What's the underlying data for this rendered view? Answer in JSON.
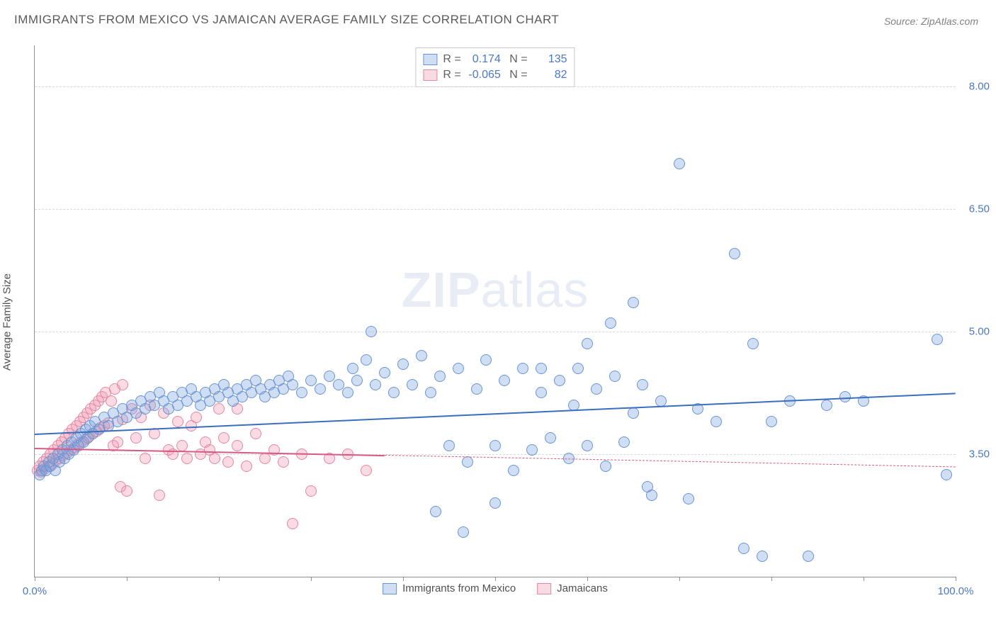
{
  "title": "IMMIGRANTS FROM MEXICO VS JAMAICAN AVERAGE FAMILY SIZE CORRELATION CHART",
  "source_label": "Source: ZipAtlas.com",
  "watermark_a": "ZIP",
  "watermark_b": "atlas",
  "ylabel": "Average Family Size",
  "chart": {
    "type": "scatter",
    "xlim": [
      0,
      100
    ],
    "ylim": [
      2.0,
      8.5
    ],
    "y_gridlines": [
      3.5,
      5.0,
      6.5,
      8.0
    ],
    "y_tick_labels": [
      "3.50",
      "5.00",
      "6.50",
      "8.00"
    ],
    "x_ticks": [
      0,
      10,
      20,
      30,
      40,
      50,
      60,
      70,
      80,
      90,
      100
    ],
    "x_tick_labels": {
      "0": "0.0%",
      "100": "100.0%"
    },
    "background_color": "#ffffff",
    "grid_color": "#d8d8d8",
    "axis_color": "#909090",
    "marker_radius": 8,
    "marker_border_width": 1.2
  },
  "series": {
    "mexico": {
      "label": "Immigrants from Mexico",
      "R": "0.174",
      "N": "135",
      "fill": "rgba(120,160,220,0.35)",
      "stroke": "#6a94d4",
      "trend_color": "#3a6fc0",
      "trend": {
        "y_at_x0": 3.75,
        "y_at_x100": 4.25
      },
      "points": [
        [
          0.5,
          3.25
        ],
        [
          0.8,
          3.3
        ],
        [
          1.0,
          3.35
        ],
        [
          1.2,
          3.3
        ],
        [
          1.5,
          3.4
        ],
        [
          1.7,
          3.35
        ],
        [
          2.0,
          3.45
        ],
        [
          2.2,
          3.3
        ],
        [
          2.5,
          3.5
        ],
        [
          2.7,
          3.4
        ],
        [
          3.0,
          3.55
        ],
        [
          3.2,
          3.45
        ],
        [
          3.5,
          3.6
        ],
        [
          3.7,
          3.5
        ],
        [
          4.0,
          3.65
        ],
        [
          4.2,
          3.55
        ],
        [
          4.5,
          3.7
        ],
        [
          4.8,
          3.6
        ],
        [
          5.0,
          3.75
        ],
        [
          5.3,
          3.65
        ],
        [
          5.5,
          3.8
        ],
        [
          5.8,
          3.7
        ],
        [
          6.0,
          3.85
        ],
        [
          6.3,
          3.75
        ],
        [
          6.5,
          3.9
        ],
        [
          7.0,
          3.8
        ],
        [
          7.5,
          3.95
        ],
        [
          8.0,
          3.85
        ],
        [
          8.5,
          4.0
        ],
        [
          9.0,
          3.9
        ],
        [
          9.5,
          4.05
        ],
        [
          10.0,
          3.95
        ],
        [
          10.5,
          4.1
        ],
        [
          11.0,
          4.0
        ],
        [
          11.5,
          4.15
        ],
        [
          12.0,
          4.05
        ],
        [
          12.5,
          4.2
        ],
        [
          13.0,
          4.1
        ],
        [
          13.5,
          4.25
        ],
        [
          14.0,
          4.15
        ],
        [
          14.5,
          4.05
        ],
        [
          15.0,
          4.2
        ],
        [
          15.5,
          4.1
        ],
        [
          16.0,
          4.25
        ],
        [
          16.5,
          4.15
        ],
        [
          17.0,
          4.3
        ],
        [
          17.5,
          4.2
        ],
        [
          18.0,
          4.1
        ],
        [
          18.5,
          4.25
        ],
        [
          19.0,
          4.15
        ],
        [
          19.5,
          4.3
        ],
        [
          20.0,
          4.2
        ],
        [
          20.5,
          4.35
        ],
        [
          21.0,
          4.25
        ],
        [
          21.5,
          4.15
        ],
        [
          22.0,
          4.3
        ],
        [
          22.5,
          4.2
        ],
        [
          23.0,
          4.35
        ],
        [
          23.5,
          4.25
        ],
        [
          24.0,
          4.4
        ],
        [
          24.5,
          4.3
        ],
        [
          25.0,
          4.2
        ],
        [
          25.5,
          4.35
        ],
        [
          26.0,
          4.25
        ],
        [
          26.5,
          4.4
        ],
        [
          27.0,
          4.3
        ],
        [
          27.5,
          4.45
        ],
        [
          28.0,
          4.35
        ],
        [
          29.0,
          4.25
        ],
        [
          30.0,
          4.4
        ],
        [
          31.0,
          4.3
        ],
        [
          32.0,
          4.45
        ],
        [
          33.0,
          4.35
        ],
        [
          34.0,
          4.25
        ],
        [
          34.5,
          4.55
        ],
        [
          35.0,
          4.4
        ],
        [
          36.0,
          4.65
        ],
        [
          36.5,
          5.0
        ],
        [
          37.0,
          4.35
        ],
        [
          38.0,
          4.5
        ],
        [
          39.0,
          4.25
        ],
        [
          40.0,
          4.6
        ],
        [
          41.0,
          4.35
        ],
        [
          42.0,
          4.7
        ],
        [
          43.0,
          4.25
        ],
        [
          43.5,
          2.8
        ],
        [
          44.0,
          4.45
        ],
        [
          45.0,
          3.6
        ],
        [
          46.0,
          4.55
        ],
        [
          46.5,
          2.55
        ],
        [
          47.0,
          3.4
        ],
        [
          48.0,
          4.3
        ],
        [
          49.0,
          4.65
        ],
        [
          50.0,
          3.6
        ],
        [
          51.0,
          4.4
        ],
        [
          52.0,
          3.3
        ],
        [
          53.0,
          4.55
        ],
        [
          54.0,
          3.55
        ],
        [
          55.0,
          4.25
        ],
        [
          56.0,
          3.7
        ],
        [
          57.0,
          4.4
        ],
        [
          58.0,
          3.45
        ],
        [
          58.5,
          4.1
        ],
        [
          59.0,
          4.55
        ],
        [
          60.0,
          3.6
        ],
        [
          61.0,
          4.3
        ],
        [
          62.0,
          3.35
        ],
        [
          62.5,
          5.1
        ],
        [
          63.0,
          4.45
        ],
        [
          64.0,
          3.65
        ],
        [
          65.0,
          4.0
        ],
        [
          66.0,
          4.35
        ],
        [
          66.5,
          3.1
        ],
        [
          67.0,
          3.0
        ],
        [
          68.0,
          4.15
        ],
        [
          70.0,
          7.05
        ],
        [
          71.0,
          2.95
        ],
        [
          72.0,
          4.05
        ],
        [
          74.0,
          3.9
        ],
        [
          76.0,
          5.95
        ],
        [
          77.0,
          2.35
        ],
        [
          78.0,
          4.85
        ],
        [
          79.0,
          2.25
        ],
        [
          80.0,
          3.9
        ],
        [
          82.0,
          4.15
        ],
        [
          84.0,
          2.25
        ],
        [
          86.0,
          4.1
        ],
        [
          88.0,
          4.2
        ],
        [
          90.0,
          4.15
        ],
        [
          98.0,
          4.9
        ],
        [
          99.0,
          3.25
        ],
        [
          65.0,
          5.35
        ],
        [
          60.0,
          4.85
        ],
        [
          55.0,
          4.55
        ],
        [
          50.0,
          2.9
        ]
      ]
    },
    "jamaica": {
      "label": "Jamaicans",
      "R": "-0.065",
      "N": "82",
      "fill": "rgba(240,150,175,0.35)",
      "stroke": "#e288a2",
      "trend_color": "#d85a84",
      "trend": {
        "y_at_x0": 3.58,
        "y_at_x100": 3.35
      },
      "trend_solid_until_x": 38,
      "points": [
        [
          0.3,
          3.3
        ],
        [
          0.5,
          3.35
        ],
        [
          0.7,
          3.28
        ],
        [
          0.9,
          3.4
        ],
        [
          1.1,
          3.32
        ],
        [
          1.3,
          3.45
        ],
        [
          1.5,
          3.35
        ],
        [
          1.7,
          3.5
        ],
        [
          1.9,
          3.38
        ],
        [
          2.1,
          3.55
        ],
        [
          2.3,
          3.42
        ],
        [
          2.5,
          3.6
        ],
        [
          2.7,
          3.45
        ],
        [
          2.9,
          3.65
        ],
        [
          3.1,
          3.48
        ],
        [
          3.3,
          3.7
        ],
        [
          3.5,
          3.52
        ],
        [
          3.7,
          3.75
        ],
        [
          3.9,
          3.55
        ],
        [
          4.1,
          3.8
        ],
        [
          4.3,
          3.58
        ],
        [
          4.5,
          3.85
        ],
        [
          4.7,
          3.62
        ],
        [
          4.9,
          3.9
        ],
        [
          5.1,
          3.65
        ],
        [
          5.3,
          3.95
        ],
        [
          5.5,
          3.68
        ],
        [
          5.7,
          4.0
        ],
        [
          5.9,
          3.72
        ],
        [
          6.1,
          4.05
        ],
        [
          6.3,
          3.75
        ],
        [
          6.5,
          4.1
        ],
        [
          6.7,
          3.78
        ],
        [
          6.9,
          4.15
        ],
        [
          7.1,
          3.82
        ],
        [
          7.3,
          4.2
        ],
        [
          7.5,
          3.85
        ],
        [
          7.7,
          4.25
        ],
        [
          8.0,
          3.88
        ],
        [
          8.3,
          4.15
        ],
        [
          8.5,
          3.6
        ],
        [
          8.7,
          4.3
        ],
        [
          9.0,
          3.65
        ],
        [
          9.3,
          3.1
        ],
        [
          9.5,
          3.92
        ],
        [
          10.0,
          3.05
        ],
        [
          10.5,
          4.05
        ],
        [
          11.0,
          3.7
        ],
        [
          11.5,
          3.95
        ],
        [
          12.0,
          3.45
        ],
        [
          12.5,
          4.1
        ],
        [
          13.0,
          3.75
        ],
        [
          13.5,
          3.0
        ],
        [
          14.0,
          4.0
        ],
        [
          14.5,
          3.55
        ],
        [
          15.0,
          3.5
        ],
        [
          15.5,
          3.9
        ],
        [
          16.0,
          3.6
        ],
        [
          16.5,
          3.45
        ],
        [
          17.0,
          3.85
        ],
        [
          17.5,
          3.95
        ],
        [
          18.0,
          3.5
        ],
        [
          18.5,
          3.65
        ],
        [
          19.0,
          3.55
        ],
        [
          19.5,
          3.45
        ],
        [
          20.0,
          4.05
        ],
        [
          20.5,
          3.7
        ],
        [
          21.0,
          3.4
        ],
        [
          22.0,
          3.6
        ],
        [
          23.0,
          3.35
        ],
        [
          24.0,
          3.75
        ],
        [
          25.0,
          3.45
        ],
        [
          26.0,
          3.55
        ],
        [
          27.0,
          3.4
        ],
        [
          28.0,
          2.65
        ],
        [
          29.0,
          3.5
        ],
        [
          30.0,
          3.05
        ],
        [
          32.0,
          3.45
        ],
        [
          34.0,
          3.5
        ],
        [
          36.0,
          3.3
        ],
        [
          22.0,
          4.05
        ],
        [
          9.5,
          4.35
        ]
      ]
    }
  }
}
